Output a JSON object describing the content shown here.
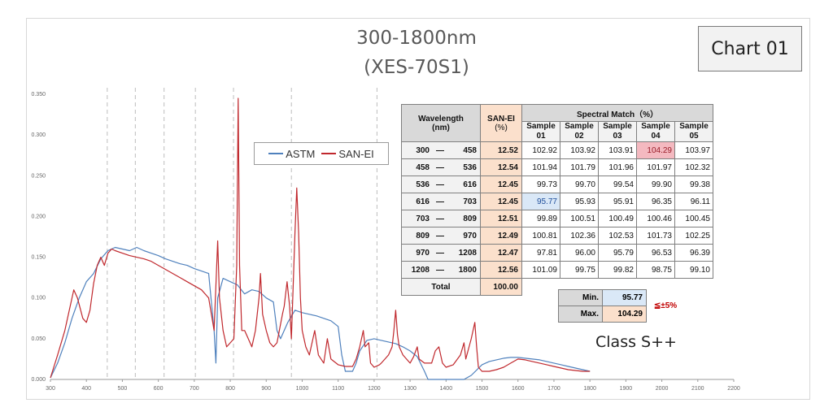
{
  "chart_label": "Chart 01",
  "class_label": "Class S++",
  "chart_data": {
    "type": "line",
    "title": [
      "300-1800nm",
      "(XES-70S1)"
    ],
    "xlabel": "",
    "ylabel": "",
    "xlim": [
      300,
      2200
    ],
    "ylim": [
      0,
      0.35
    ],
    "x_ticks": [
      300,
      400,
      500,
      600,
      700,
      800,
      900,
      1000,
      1100,
      1200,
      1300,
      1400,
      1500,
      1600,
      1700,
      1800,
      1900,
      2000,
      2100,
      2200
    ],
    "y_ticks": [
      "0.000",
      "0.050",
      "0.100",
      "0.150",
      "0.200",
      "0.250",
      "0.300",
      "0.350"
    ],
    "grid_vertical_dashed": [
      458,
      536,
      616,
      703,
      809,
      970,
      1208
    ],
    "legend_placement": "upper-left-center",
    "series": [
      {
        "name": "ASTM",
        "color": "#4f81bd",
        "points": [
          [
            300,
            0.002
          ],
          [
            320,
            0.02
          ],
          [
            340,
            0.045
          ],
          [
            360,
            0.075
          ],
          [
            380,
            0.1
          ],
          [
            400,
            0.12
          ],
          [
            420,
            0.13
          ],
          [
            440,
            0.148
          ],
          [
            460,
            0.158
          ],
          [
            480,
            0.162
          ],
          [
            500,
            0.16
          ],
          [
            520,
            0.158
          ],
          [
            540,
            0.162
          ],
          [
            560,
            0.158
          ],
          [
            580,
            0.155
          ],
          [
            600,
            0.152
          ],
          [
            620,
            0.148
          ],
          [
            640,
            0.145
          ],
          [
            660,
            0.142
          ],
          [
            680,
            0.14
          ],
          [
            700,
            0.136
          ],
          [
            720,
            0.133
          ],
          [
            740,
            0.13
          ],
          [
            755,
            0.06
          ],
          [
            760,
            0.02
          ],
          [
            765,
            0.1
          ],
          [
            780,
            0.124
          ],
          [
            800,
            0.12
          ],
          [
            820,
            0.116
          ],
          [
            840,
            0.105
          ],
          [
            860,
            0.11
          ],
          [
            880,
            0.108
          ],
          [
            900,
            0.1
          ],
          [
            920,
            0.095
          ],
          [
            930,
            0.06
          ],
          [
            940,
            0.05
          ],
          [
            960,
            0.07
          ],
          [
            980,
            0.085
          ],
          [
            1000,
            0.082
          ],
          [
            1020,
            0.08
          ],
          [
            1040,
            0.078
          ],
          [
            1060,
            0.075
          ],
          [
            1080,
            0.072
          ],
          [
            1100,
            0.065
          ],
          [
            1110,
            0.03
          ],
          [
            1120,
            0.01
          ],
          [
            1140,
            0.01
          ],
          [
            1150,
            0.02
          ],
          [
            1160,
            0.035
          ],
          [
            1180,
            0.048
          ],
          [
            1200,
            0.05
          ],
          [
            1220,
            0.048
          ],
          [
            1240,
            0.046
          ],
          [
            1260,
            0.044
          ],
          [
            1280,
            0.04
          ],
          [
            1300,
            0.035
          ],
          [
            1320,
            0.028
          ],
          [
            1340,
            0.01
          ],
          [
            1350,
            0.0
          ],
          [
            1400,
            0.0
          ],
          [
            1450,
            0.0
          ],
          [
            1470,
            0.005
          ],
          [
            1500,
            0.018
          ],
          [
            1520,
            0.022
          ],
          [
            1540,
            0.024
          ],
          [
            1560,
            0.026
          ],
          [
            1580,
            0.027
          ],
          [
            1600,
            0.027
          ],
          [
            1620,
            0.026
          ],
          [
            1640,
            0.025
          ],
          [
            1660,
            0.024
          ],
          [
            1680,
            0.022
          ],
          [
            1700,
            0.02
          ],
          [
            1720,
            0.018
          ],
          [
            1740,
            0.016
          ],
          [
            1760,
            0.014
          ],
          [
            1780,
            0.012
          ],
          [
            1800,
            0.01
          ]
        ]
      },
      {
        "name": "SAN-EI",
        "color": "#c0282d",
        "points": [
          [
            300,
            0.002
          ],
          [
            320,
            0.03
          ],
          [
            340,
            0.06
          ],
          [
            355,
            0.09
          ],
          [
            365,
            0.11
          ],
          [
            375,
            0.1
          ],
          [
            390,
            0.075
          ],
          [
            400,
            0.07
          ],
          [
            410,
            0.085
          ],
          [
            420,
            0.118
          ],
          [
            430,
            0.14
          ],
          [
            440,
            0.15
          ],
          [
            450,
            0.14
          ],
          [
            460,
            0.155
          ],
          [
            470,
            0.16
          ],
          [
            480,
            0.158
          ],
          [
            500,
            0.155
          ],
          [
            520,
            0.152
          ],
          [
            540,
            0.15
          ],
          [
            560,
            0.148
          ],
          [
            580,
            0.145
          ],
          [
            600,
            0.14
          ],
          [
            620,
            0.135
          ],
          [
            640,
            0.13
          ],
          [
            660,
            0.125
          ],
          [
            680,
            0.12
          ],
          [
            700,
            0.115
          ],
          [
            720,
            0.11
          ],
          [
            740,
            0.1
          ],
          [
            755,
            0.06
          ],
          [
            765,
            0.17
          ],
          [
            770,
            0.1
          ],
          [
            780,
            0.06
          ],
          [
            790,
            0.04
          ],
          [
            800,
            0.045
          ],
          [
            810,
            0.05
          ],
          [
            818,
            0.14
          ],
          [
            822,
            0.345
          ],
          [
            826,
            0.14
          ],
          [
            832,
            0.06
          ],
          [
            840,
            0.06
          ],
          [
            850,
            0.05
          ],
          [
            860,
            0.04
          ],
          [
            870,
            0.06
          ],
          [
            880,
            0.1
          ],
          [
            884,
            0.13
          ],
          [
            890,
            0.08
          ],
          [
            900,
            0.06
          ],
          [
            910,
            0.045
          ],
          [
            920,
            0.04
          ],
          [
            930,
            0.045
          ],
          [
            945,
            0.08
          ],
          [
            950,
            0.09
          ],
          [
            958,
            0.12
          ],
          [
            965,
            0.09
          ],
          [
            970,
            0.05
          ],
          [
            980,
            0.18
          ],
          [
            985,
            0.235
          ],
          [
            990,
            0.18
          ],
          [
            995,
            0.1
          ],
          [
            1000,
            0.06
          ],
          [
            1010,
            0.04
          ],
          [
            1020,
            0.03
          ],
          [
            1035,
            0.06
          ],
          [
            1045,
            0.03
          ],
          [
            1060,
            0.02
          ],
          [
            1070,
            0.05
          ],
          [
            1080,
            0.025
          ],
          [
            1100,
            0.018
          ],
          [
            1120,
            0.016
          ],
          [
            1140,
            0.016
          ],
          [
            1150,
            0.025
          ],
          [
            1160,
            0.04
          ],
          [
            1170,
            0.06
          ],
          [
            1175,
            0.04
          ],
          [
            1185,
            0.045
          ],
          [
            1190,
            0.02
          ],
          [
            1200,
            0.015
          ],
          [
            1215,
            0.018
          ],
          [
            1220,
            0.02
          ],
          [
            1230,
            0.025
          ],
          [
            1240,
            0.03
          ],
          [
            1250,
            0.04
          ],
          [
            1255,
            0.06
          ],
          [
            1260,
            0.085
          ],
          [
            1265,
            0.055
          ],
          [
            1270,
            0.04
          ],
          [
            1280,
            0.03
          ],
          [
            1300,
            0.02
          ],
          [
            1310,
            0.028
          ],
          [
            1320,
            0.04
          ],
          [
            1325,
            0.025
          ],
          [
            1340,
            0.02
          ],
          [
            1360,
            0.02
          ],
          [
            1370,
            0.035
          ],
          [
            1380,
            0.04
          ],
          [
            1390,
            0.02
          ],
          [
            1400,
            0.015
          ],
          [
            1420,
            0.018
          ],
          [
            1440,
            0.03
          ],
          [
            1450,
            0.045
          ],
          [
            1455,
            0.025
          ],
          [
            1470,
            0.05
          ],
          [
            1480,
            0.07
          ],
          [
            1485,
            0.04
          ],
          [
            1490,
            0.015
          ],
          [
            1500,
            0.01
          ],
          [
            1520,
            0.01
          ],
          [
            1540,
            0.012
          ],
          [
            1560,
            0.015
          ],
          [
            1580,
            0.02
          ],
          [
            1600,
            0.025
          ],
          [
            1620,
            0.024
          ],
          [
            1640,
            0.022
          ],
          [
            1660,
            0.02
          ],
          [
            1680,
            0.018
          ],
          [
            1700,
            0.016
          ],
          [
            1720,
            0.014
          ],
          [
            1740,
            0.012
          ],
          [
            1760,
            0.011
          ],
          [
            1780,
            0.01
          ],
          [
            1800,
            0.01
          ]
        ]
      }
    ]
  },
  "table": {
    "header": {
      "wavelength": "Wavelength",
      "wavelength_unit": "(nm)",
      "sanei": "SAN-EI",
      "sanei_unit": "(%)",
      "spectral_match": "Spectral Match（%）",
      "samples": [
        {
          "line1": "Sample",
          "line2": "01"
        },
        {
          "line1": "Sample",
          "line2": "02"
        },
        {
          "line1": "Sample",
          "line2": "03"
        },
        {
          "line1": "Sample",
          "line2": "04"
        },
        {
          "line1": "Sample",
          "line2": "05"
        }
      ]
    },
    "dash": "—",
    "rows": [
      {
        "from": "300",
        "to": "458",
        "sanei": "12.52",
        "samples": [
          "102.92",
          "103.92",
          "103.91",
          "104.29",
          "103.97"
        ]
      },
      {
        "from": "458",
        "to": "536",
        "sanei": "12.54",
        "samples": [
          "101.94",
          "101.79",
          "101.96",
          "101.97",
          "102.32"
        ]
      },
      {
        "from": "536",
        "to": "616",
        "sanei": "12.45",
        "samples": [
          "99.73",
          "99.70",
          "99.54",
          "99.90",
          "99.38"
        ]
      },
      {
        "from": "616",
        "to": "703",
        "sanei": "12.45",
        "samples": [
          "95.77",
          "95.93",
          "95.91",
          "96.35",
          "96.11"
        ]
      },
      {
        "from": "703",
        "to": "809",
        "sanei": "12.51",
        "samples": [
          "99.89",
          "100.51",
          "100.49",
          "100.46",
          "100.45"
        ]
      },
      {
        "from": "809",
        "to": "970",
        "sanei": "12.49",
        "samples": [
          "100.81",
          "102.36",
          "102.53",
          "101.73",
          "102.25"
        ]
      },
      {
        "from": "970",
        "to": "1208",
        "sanei": "12.47",
        "samples": [
          "97.81",
          "96.00",
          "95.79",
          "96.53",
          "96.39"
        ]
      },
      {
        "from": "1208",
        "to": "1800",
        "sanei": "12.56",
        "samples": [
          "101.09",
          "99.75",
          "99.82",
          "98.75",
          "99.10"
        ]
      }
    ],
    "total_label": "Total",
    "total_value": "100.00"
  },
  "minmax": {
    "min_label": "Min.",
    "min_value": "95.77",
    "max_label": "Max.",
    "max_value": "104.29",
    "tolerance": "≦±5%"
  }
}
